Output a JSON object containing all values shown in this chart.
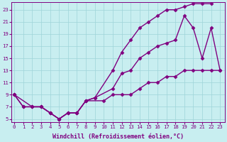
{
  "xlabel": "Windchill (Refroidissement éolien,°C)",
  "bg_color": "#c8eef0",
  "line_color": "#800080",
  "grid_color": "#9ed4d8",
  "xlim": [
    -0.3,
    23.5
  ],
  "ylim": [
    4.5,
    24.2
  ],
  "xticks": [
    0,
    1,
    2,
    3,
    4,
    5,
    6,
    7,
    8,
    9,
    10,
    11,
    12,
    13,
    14,
    15,
    16,
    17,
    18,
    19,
    20,
    21,
    22,
    23
  ],
  "yticks": [
    5,
    7,
    9,
    11,
    13,
    15,
    17,
    19,
    21,
    23
  ],
  "line1_x": [
    0,
    1,
    2,
    3,
    4,
    5,
    6,
    7,
    8,
    9,
    11,
    12,
    13,
    14,
    15,
    16,
    17,
    18,
    19,
    20,
    21,
    22
  ],
  "line1_y": [
    9,
    7,
    7,
    7,
    6,
    5,
    6,
    6,
    8,
    8.5,
    13,
    16,
    18,
    20,
    21,
    22,
    23,
    23,
    23.5,
    24,
    24,
    24
  ],
  "line2_x": [
    0,
    1,
    2,
    3,
    4,
    5,
    6,
    7,
    8,
    9,
    11,
    12,
    13,
    14,
    15,
    16,
    17,
    18,
    19,
    20,
    21,
    22,
    23
  ],
  "line2_y": [
    9,
    7,
    7,
    7,
    6,
    5,
    6,
    6,
    8,
    8.5,
    10,
    12.5,
    13,
    15,
    16,
    17,
    17.5,
    18,
    22,
    20,
    15,
    20,
    13
  ],
  "line3_x": [
    0,
    2,
    3,
    4,
    5,
    6,
    7,
    8,
    10,
    11,
    12,
    13,
    14,
    15,
    16,
    17,
    18,
    19,
    20,
    21,
    22,
    23
  ],
  "line3_y": [
    9,
    7,
    7,
    6,
    5,
    6,
    6,
    8,
    8,
    9,
    9,
    9,
    10,
    11,
    11,
    12,
    12,
    13,
    13,
    13,
    13,
    13
  ],
  "marker": "D",
  "markersize": 2.5,
  "linewidth": 1.0,
  "tick_fontsize": 5.2,
  "label_fontsize": 6.0
}
